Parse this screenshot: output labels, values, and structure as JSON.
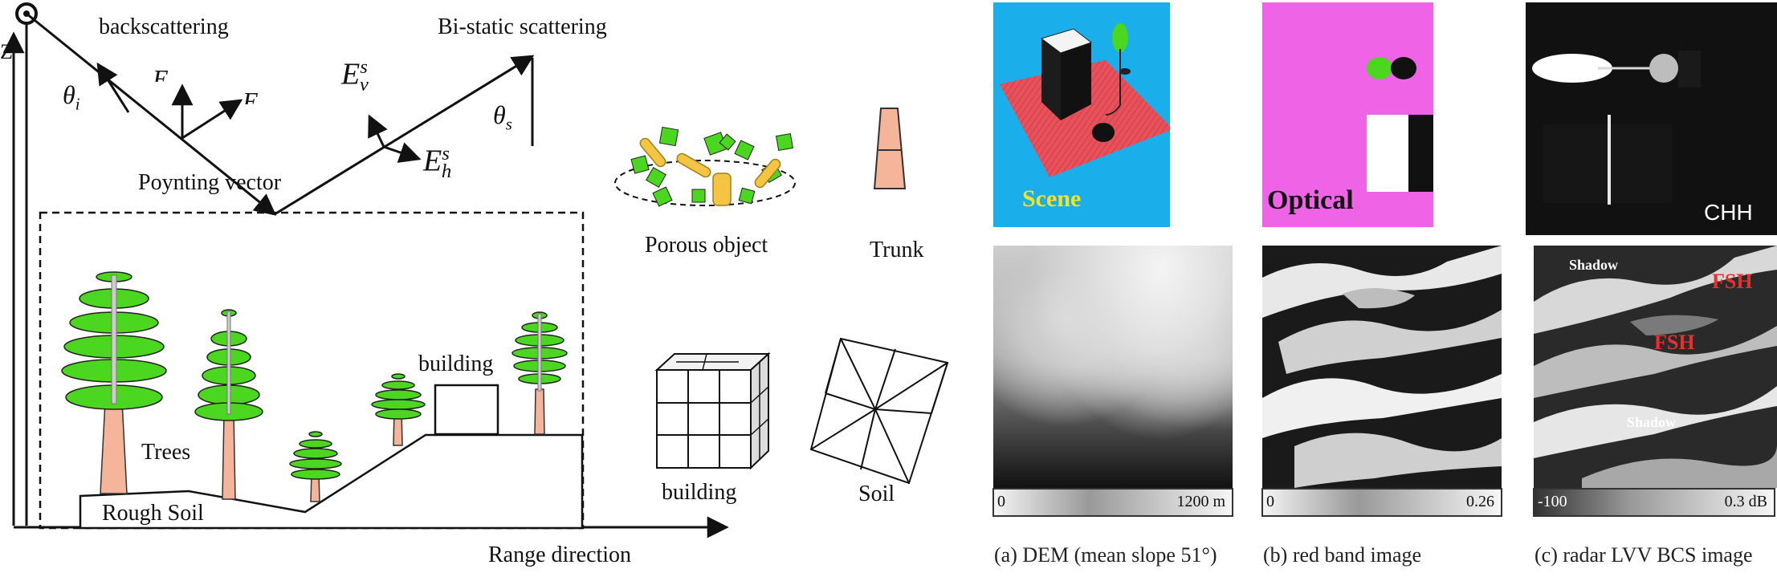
{
  "diagram": {
    "axis_z": "Z",
    "backscattering": "backscattering",
    "bistatic": "Bi-static scattering",
    "theta_i": "θ",
    "theta_i_sub": "i",
    "theta_s": "θ",
    "theta_s_sub": "s",
    "ev": "E",
    "ev_sup": "s",
    "ev_sub": "v",
    "eh": "E",
    "eh_sup": "s",
    "eh_sub": "h",
    "e_partial_1": "E",
    "e_partial_2": "E",
    "poynting": "Poynting vector",
    "trees": "Trees",
    "building_scene": "building",
    "rough_soil": "Rough Soil",
    "range_direction": "Range direction",
    "porous_object": "Porous object",
    "trunk": "Trunk",
    "building_legend": "building",
    "soil": "Soil"
  },
  "panels": {
    "scene_label": "Scene",
    "optical_label": "Optical",
    "chh_label": "CHH",
    "shadow_1": "Shadow",
    "fsh_1": "FSH",
    "fsh_2": "FSH",
    "shadow_2": "Shadow",
    "dem_min": "0",
    "dem_max": "1200 m",
    "red_min": "0",
    "red_max": "0.26",
    "radar_min": "-100",
    "radar_max": "0.3 dB",
    "caption_a": "(a) DEM (mean slope 51°)",
    "caption_b": "(b) red band image",
    "caption_c": "(c) radar LVV BCS image"
  },
  "colors": {
    "tree_green": "#4bd61f",
    "trunk_pink": "#f4b59a",
    "scene_bg": "#1aaeea",
    "scene_ground": "#e8505a",
    "optical_bg": "#ef63e6",
    "fsh_red": "#e53030",
    "scene_text": "#f4e12a"
  }
}
